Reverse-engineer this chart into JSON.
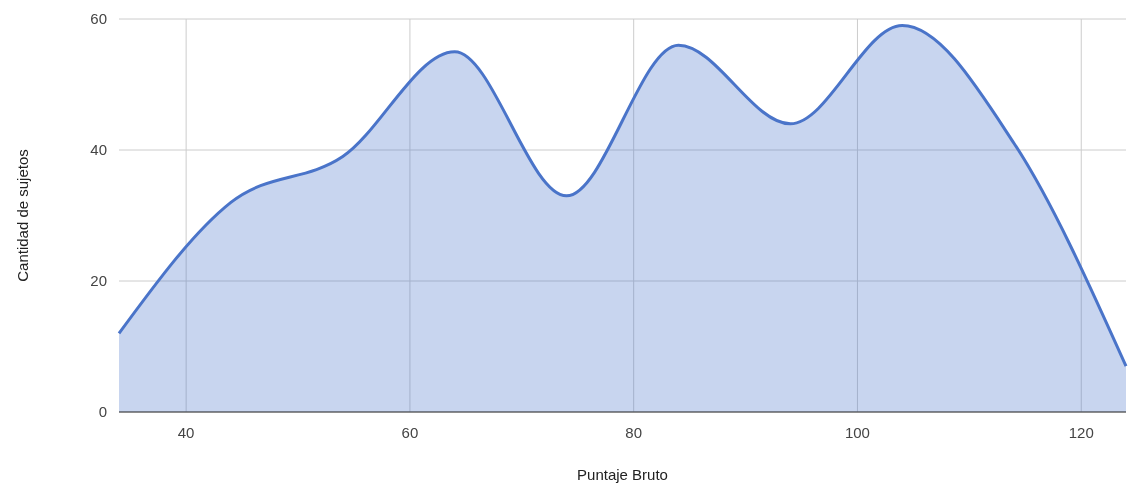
{
  "chart_data": {
    "type": "area",
    "xlabel": "Puntaje Bruto",
    "ylabel": "Cantidad de sujetos",
    "x": [
      34,
      44,
      54,
      64,
      74,
      84,
      94,
      104,
      114,
      124
    ],
    "series": [
      {
        "color": "#4a74c9",
        "values": [
          12,
          32,
          39,
          55,
          33,
          56,
          44,
          59,
          41,
          7
        ]
      }
    ],
    "xlim": [
      34,
      124
    ],
    "xticks": [
      40,
      60,
      80,
      100,
      120
    ],
    "ylim": [
      0,
      60
    ],
    "yticks": [
      0,
      20,
      40,
      60
    ],
    "grid": true
  }
}
